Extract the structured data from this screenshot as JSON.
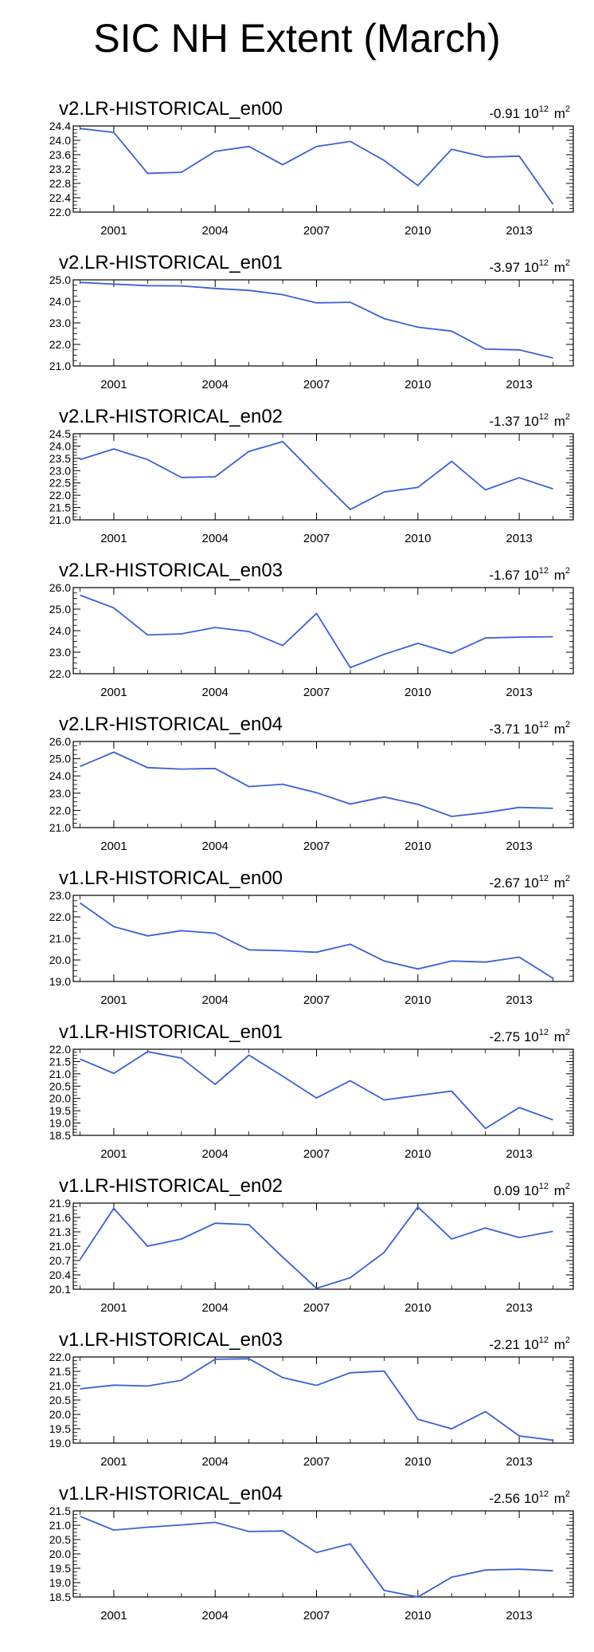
{
  "title": "SIC NH Extent (March)",
  "style": {
    "line_color": "#3a5fd9",
    "axis_color": "#000000"
  },
  "chart_data": [
    {
      "type": "line",
      "title": "v2.LR-HISTORICAL_en00",
      "trend": "-0.91",
      "unit_base": "10",
      "unit_exp": "12",
      "unit_label": "m",
      "unit_label_exp": "2",
      "x": [
        2000,
        2001,
        2002,
        2003,
        2004,
        2005,
        2006,
        2007,
        2008,
        2009,
        2010,
        2011,
        2012,
        2013,
        2014
      ],
      "xticks": [
        2001,
        2004,
        2007,
        2010,
        2013
      ],
      "xlim": [
        1999.8,
        2014.6
      ],
      "ylim": [
        22.0,
        24.4
      ],
      "yticks": [
        "24.4",
        "24.0",
        "23.6",
        "23.2",
        "22.8",
        "22.4",
        "22.0"
      ],
      "values": [
        24.33,
        24.22,
        23.08,
        23.11,
        23.69,
        23.83,
        23.32,
        23.83,
        23.97,
        23.44,
        22.74,
        23.75,
        23.53,
        23.56,
        22.22
      ]
    },
    {
      "type": "line",
      "title": "v2.LR-HISTORICAL_en01",
      "trend": "-3.97",
      "unit_base": "10",
      "unit_exp": "12",
      "unit_label": "m",
      "unit_label_exp": "2",
      "x": [
        2000,
        2001,
        2002,
        2003,
        2004,
        2005,
        2006,
        2007,
        2008,
        2009,
        2010,
        2011,
        2012,
        2013,
        2014
      ],
      "xticks": [
        2001,
        2004,
        2007,
        2010,
        2013
      ],
      "xlim": [
        1999.8,
        2014.6
      ],
      "ylim": [
        21.0,
        25.0
      ],
      "yticks": [
        "25.0",
        "24.0",
        "23.0",
        "22.0",
        "21.0"
      ],
      "values": [
        24.88,
        24.8,
        24.73,
        24.72,
        24.6,
        24.51,
        24.31,
        23.93,
        23.96,
        23.2,
        22.8,
        22.62,
        21.78,
        21.75,
        21.37
      ]
    },
    {
      "type": "line",
      "title": "v2.LR-HISTORICAL_en02",
      "trend": "-1.37",
      "unit_base": "10",
      "unit_exp": "12",
      "unit_label": "m",
      "unit_label_exp": "2",
      "x": [
        2000,
        2001,
        2002,
        2003,
        2004,
        2005,
        2006,
        2007,
        2008,
        2009,
        2010,
        2011,
        2012,
        2013,
        2014
      ],
      "xticks": [
        2001,
        2004,
        2007,
        2010,
        2013
      ],
      "xlim": [
        1999.8,
        2014.6
      ],
      "ylim": [
        21.0,
        24.5
      ],
      "yticks": [
        "24.5",
        "24.0",
        "23.5",
        "23.0",
        "22.5",
        "22.0",
        "21.5",
        "21.0"
      ],
      "values": [
        23.45,
        23.88,
        23.45,
        22.72,
        22.75,
        23.78,
        24.18,
        22.78,
        21.42,
        22.13,
        22.32,
        23.38,
        22.22,
        22.71,
        22.26
      ]
    },
    {
      "type": "line",
      "title": "v2.LR-HISTORICAL_en03",
      "trend": "-1.67",
      "unit_base": "10",
      "unit_exp": "12",
      "unit_label": "m",
      "unit_label_exp": "2",
      "x": [
        2000,
        2001,
        2002,
        2003,
        2004,
        2005,
        2006,
        2007,
        2008,
        2009,
        2010,
        2011,
        2012,
        2013,
        2014
      ],
      "xticks": [
        2001,
        2004,
        2007,
        2010,
        2013
      ],
      "xlim": [
        1999.8,
        2014.6
      ],
      "ylim": [
        22.0,
        26.0
      ],
      "yticks": [
        "26.0",
        "25.0",
        "24.0",
        "23.0",
        "22.0"
      ],
      "values": [
        25.65,
        25.06,
        23.8,
        23.85,
        24.15,
        23.96,
        23.31,
        24.8,
        22.28,
        22.9,
        23.41,
        22.95,
        23.66,
        23.7,
        23.72
      ]
    },
    {
      "type": "line",
      "title": "v2.LR-HISTORICAL_en04",
      "trend": "-3.71",
      "unit_base": "10",
      "unit_exp": "12",
      "unit_label": "m",
      "unit_label_exp": "2",
      "x": [
        2000,
        2001,
        2002,
        2003,
        2004,
        2005,
        2006,
        2007,
        2008,
        2009,
        2010,
        2011,
        2012,
        2013,
        2014
      ],
      "xticks": [
        2001,
        2004,
        2007,
        2010,
        2013
      ],
      "xlim": [
        1999.8,
        2014.6
      ],
      "ylim": [
        21.0,
        26.0
      ],
      "yticks": [
        "26.0",
        "25.0",
        "24.0",
        "23.0",
        "22.0",
        "21.0"
      ],
      "values": [
        24.55,
        25.38,
        24.48,
        24.4,
        24.43,
        23.38,
        23.52,
        23.03,
        22.37,
        22.78,
        22.35,
        21.65,
        21.87,
        22.17,
        22.12
      ]
    },
    {
      "type": "line",
      "title": "v1.LR-HISTORICAL_en00",
      "trend": "-2.67",
      "unit_base": "10",
      "unit_exp": "12",
      "unit_label": "m",
      "unit_label_exp": "2",
      "x": [
        2000,
        2001,
        2002,
        2003,
        2004,
        2005,
        2006,
        2007,
        2008,
        2009,
        2010,
        2011,
        2012,
        2013,
        2014
      ],
      "xticks": [
        2001,
        2004,
        2007,
        2010,
        2013
      ],
      "xlim": [
        1999.8,
        2014.6
      ],
      "ylim": [
        19.0,
        23.0
      ],
      "yticks": [
        "23.0",
        "22.0",
        "21.0",
        "20.0",
        "19.0"
      ],
      "values": [
        22.65,
        21.55,
        21.12,
        21.36,
        21.24,
        20.47,
        20.43,
        20.36,
        20.73,
        19.95,
        19.58,
        19.95,
        19.9,
        20.13,
        19.15
      ]
    },
    {
      "type": "line",
      "title": "v1.LR-HISTORICAL_en01",
      "trend": "-2.75",
      "unit_base": "10",
      "unit_exp": "12",
      "unit_label": "m",
      "unit_label_exp": "2",
      "x": [
        2000,
        2001,
        2002,
        2003,
        2004,
        2005,
        2006,
        2007,
        2008,
        2009,
        2010,
        2011,
        2012,
        2013,
        2014
      ],
      "xticks": [
        2001,
        2004,
        2007,
        2010,
        2013
      ],
      "xlim": [
        1999.8,
        2014.6
      ],
      "ylim": [
        18.5,
        22.0
      ],
      "yticks": [
        "22.0",
        "21.5",
        "21.0",
        "20.5",
        "20.0",
        "19.5",
        "19.0",
        "18.5"
      ],
      "values": [
        21.6,
        21.02,
        21.9,
        21.64,
        20.57,
        21.76,
        20.9,
        20.02,
        20.72,
        19.94,
        20.12,
        20.3,
        18.78,
        19.63,
        19.13
      ]
    },
    {
      "type": "line",
      "title": "v1.LR-HISTORICAL_en02",
      "trend": "0.09",
      "unit_base": "10",
      "unit_exp": "12",
      "unit_label": "m",
      "unit_label_exp": "2",
      "x": [
        2000,
        2001,
        2002,
        2003,
        2004,
        2005,
        2006,
        2007,
        2008,
        2009,
        2010,
        2011,
        2012,
        2013,
        2014
      ],
      "xticks": [
        2001,
        2004,
        2007,
        2010,
        2013
      ],
      "xlim": [
        1999.8,
        2014.6
      ],
      "ylim": [
        20.1,
        21.9
      ],
      "yticks": [
        "21.9",
        "21.6",
        "21.3",
        "21.0",
        "20.7",
        "20.4",
        "20.1"
      ],
      "values": [
        20.72,
        21.79,
        21.0,
        21.15,
        21.48,
        21.45,
        20.77,
        20.12,
        20.34,
        20.87,
        21.82,
        21.15,
        21.38,
        21.18,
        21.31
      ]
    },
    {
      "type": "line",
      "title": "v1.LR-HISTORICAL_en03",
      "trend": "-2.21",
      "unit_base": "10",
      "unit_exp": "12",
      "unit_label": "m",
      "unit_label_exp": "2",
      "x": [
        2000,
        2001,
        2002,
        2003,
        2004,
        2005,
        2006,
        2007,
        2008,
        2009,
        2010,
        2011,
        2012,
        2013,
        2014
      ],
      "xticks": [
        2001,
        2004,
        2007,
        2010,
        2013
      ],
      "xlim": [
        1999.8,
        2014.6
      ],
      "ylim": [
        19.0,
        22.0
      ],
      "yticks": [
        "22.0",
        "21.5",
        "21.0",
        "20.5",
        "20.0",
        "19.5",
        "19.0"
      ],
      "values": [
        20.89,
        21.02,
        20.99,
        21.19,
        21.92,
        21.94,
        21.28,
        21.01,
        21.45,
        21.51,
        19.83,
        19.5,
        20.1,
        19.25,
        19.1
      ]
    },
    {
      "type": "line",
      "title": "v1.LR-HISTORICAL_en04",
      "trend": "-2.56",
      "unit_base": "10",
      "unit_exp": "12",
      "unit_label": "m",
      "unit_label_exp": "2",
      "x": [
        2000,
        2001,
        2002,
        2003,
        2004,
        2005,
        2006,
        2007,
        2008,
        2009,
        2010,
        2011,
        2012,
        2013,
        2014
      ],
      "xticks": [
        2001,
        2004,
        2007,
        2010,
        2013
      ],
      "xlim": [
        1999.8,
        2014.6
      ],
      "ylim": [
        18.5,
        21.5
      ],
      "yticks": [
        "21.5",
        "21.0",
        "20.5",
        "20.0",
        "19.5",
        "19.0",
        "18.5"
      ],
      "values": [
        21.31,
        20.83,
        20.93,
        21.01,
        21.1,
        20.78,
        20.8,
        20.05,
        20.35,
        18.73,
        18.5,
        19.19,
        19.44,
        19.47,
        19.41
      ]
    }
  ]
}
